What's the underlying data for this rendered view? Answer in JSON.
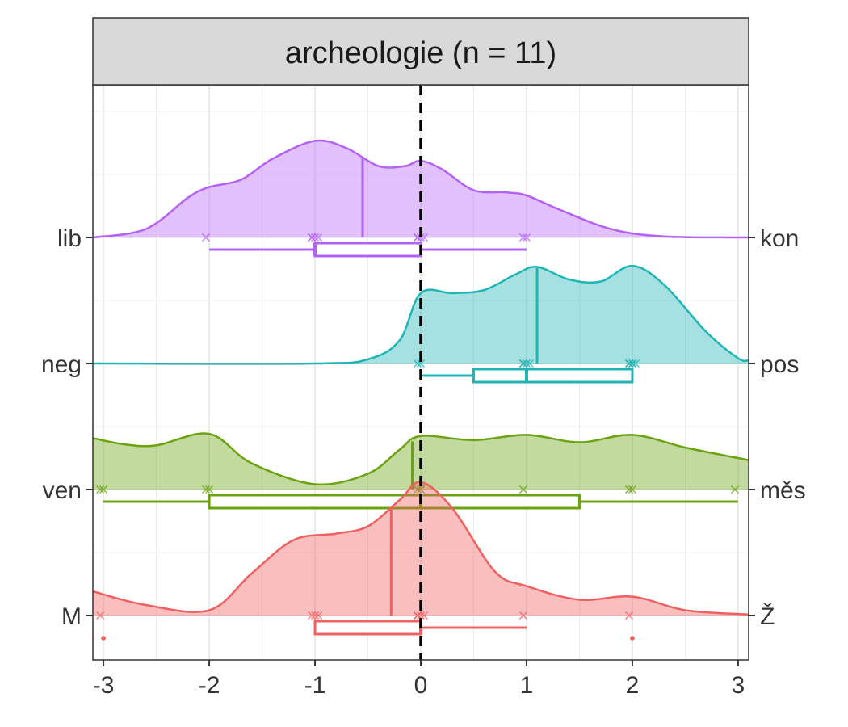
{
  "chart_data": {
    "type": "ridgeline-boxplot",
    "title": "archeologie (n = 11)",
    "xlabel": "",
    "ylabel": "",
    "xlim": [
      -3.1,
      3.1
    ],
    "x_ticks": [
      -3,
      -2,
      -1,
      0,
      1,
      2,
      3
    ],
    "x_tick_labels": [
      "-3",
      "-2",
      "-1",
      "0",
      "1",
      "2",
      "3"
    ],
    "reference_line_x": 0,
    "grid": true,
    "series": [
      {
        "name": "lib-kon",
        "left_label": "lib",
        "right_label": "kon",
        "color": "#B462F5",
        "mean": -0.55,
        "points": [
          -2,
          -1,
          -1,
          -1,
          -1,
          0,
          0,
          0,
          0,
          1,
          1
        ],
        "box": {
          "whisker_low": -2,
          "q1": -1,
          "median": -1,
          "q3": 0,
          "whisker_high": 1
        },
        "density": [
          [
            -3.1,
            0.0
          ],
          [
            -2.6,
            0.08
          ],
          [
            -2.2,
            0.38
          ],
          [
            -2.0,
            0.48
          ],
          [
            -1.7,
            0.55
          ],
          [
            -1.4,
            0.75
          ],
          [
            -1.0,
            0.92
          ],
          [
            -0.7,
            0.85
          ],
          [
            -0.4,
            0.68
          ],
          [
            -0.15,
            0.68
          ],
          [
            0.0,
            0.73
          ],
          [
            0.2,
            0.65
          ],
          [
            0.5,
            0.45
          ],
          [
            0.8,
            0.43
          ],
          [
            1.0,
            0.4
          ],
          [
            1.3,
            0.27
          ],
          [
            1.8,
            0.08
          ],
          [
            2.3,
            0.01
          ],
          [
            3.1,
            0.0
          ]
        ]
      },
      {
        "name": "neg-pos",
        "left_label": "neg",
        "right_label": "pos",
        "color": "#1FB5B5",
        "mean": 1.1,
        "points": [
          0,
          0,
          1,
          1,
          1,
          1,
          2,
          2,
          2,
          2,
          2
        ],
        "box": {
          "whisker_low": 0,
          "q1": 0.5,
          "median": 1,
          "q3": 2,
          "whisker_high": 2
        },
        "density": [
          [
            -3.1,
            0.0
          ],
          [
            -1.0,
            0.0
          ],
          [
            -0.5,
            0.04
          ],
          [
            -0.2,
            0.22
          ],
          [
            0.0,
            0.67
          ],
          [
            0.3,
            0.67
          ],
          [
            0.6,
            0.7
          ],
          [
            0.9,
            0.85
          ],
          [
            1.1,
            0.92
          ],
          [
            1.4,
            0.8
          ],
          [
            1.7,
            0.78
          ],
          [
            2.0,
            0.93
          ],
          [
            2.3,
            0.75
          ],
          [
            2.7,
            0.3
          ],
          [
            3.0,
            0.05
          ],
          [
            3.1,
            0.03
          ]
        ]
      },
      {
        "name": "ven-mes",
        "left_label": "ven",
        "right_label": "měs",
        "color": "#6AA30F",
        "mean": -0.08,
        "points": [
          -3,
          -3,
          -2,
          -2,
          0,
          0,
          1,
          2,
          2,
          3
        ],
        "box": {
          "whisker_low": -3,
          "q1": -2,
          "median": 0,
          "q3": 1.5,
          "whisker_high": 3
        },
        "density": [
          [
            -3.1,
            0.49
          ],
          [
            -2.8,
            0.43
          ],
          [
            -2.5,
            0.42
          ],
          [
            -2.0,
            0.53
          ],
          [
            -1.6,
            0.25
          ],
          [
            -1.0,
            0.05
          ],
          [
            -0.5,
            0.15
          ],
          [
            -0.2,
            0.38
          ],
          [
            0.0,
            0.51
          ],
          [
            0.5,
            0.47
          ],
          [
            1.0,
            0.52
          ],
          [
            1.5,
            0.45
          ],
          [
            2.0,
            0.52
          ],
          [
            2.5,
            0.4
          ],
          [
            3.1,
            0.28
          ]
        ]
      },
      {
        "name": "M-Z",
        "left_label": "M",
        "right_label": "Ž",
        "color": "#F06060",
        "mean": -0.28,
        "points": [
          -3,
          -1,
          -1,
          -1,
          0,
          0,
          0,
          0,
          1,
          2
        ],
        "outliers": [
          -3,
          2
        ],
        "box": {
          "whisker_low": -1,
          "q1": -1,
          "median": 0,
          "q3": 0,
          "whisker_high": 1
        },
        "density": [
          [
            -3.1,
            0.23
          ],
          [
            -2.6,
            0.1
          ],
          [
            -2.0,
            0.05
          ],
          [
            -1.6,
            0.4
          ],
          [
            -1.2,
            0.72
          ],
          [
            -0.8,
            0.78
          ],
          [
            -0.5,
            0.85
          ],
          [
            -0.2,
            1.1
          ],
          [
            0.0,
            1.27
          ],
          [
            0.3,
            1.02
          ],
          [
            0.7,
            0.42
          ],
          [
            1.0,
            0.28
          ],
          [
            1.5,
            0.15
          ],
          [
            2.0,
            0.18
          ],
          [
            2.5,
            0.05
          ],
          [
            3.1,
            0.01
          ]
        ]
      }
    ]
  }
}
